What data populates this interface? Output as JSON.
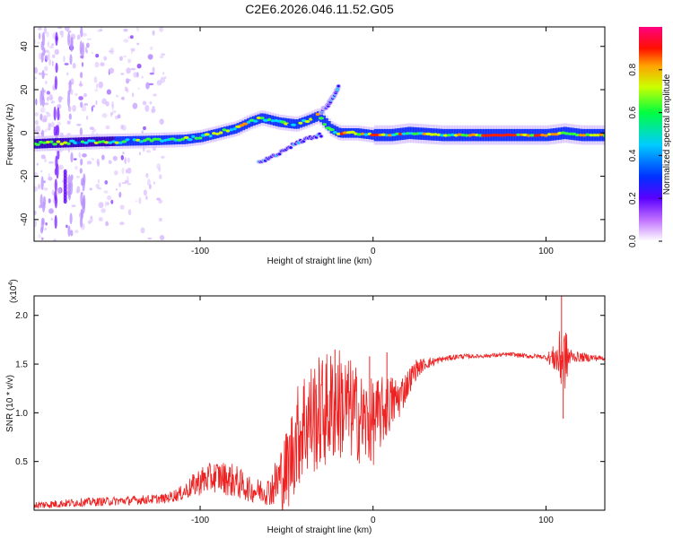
{
  "title": "C2E6.2026.046.11.52.G05",
  "chart_data": [
    {
      "type": "heatmap",
      "name": "spectrogram",
      "xlabel": "Height of straight line (km)",
      "ylabel": "Frequency (Hz)",
      "xlim": [
        -196,
        134
      ],
      "ylim": [
        -50,
        49
      ],
      "xticks": [
        -100,
        0,
        100
      ],
      "yticks": [
        -40,
        -20,
        0,
        20,
        40
      ],
      "ridge": {
        "x": [
          -196,
          -160,
          -130,
          -110,
          -100,
          -90,
          -80,
          -72,
          -65,
          -55,
          -45,
          -38,
          -32,
          -25,
          -20,
          -10,
          0,
          10,
          20,
          40,
          60,
          80,
          90,
          100,
          110,
          120,
          134
        ],
        "y": [
          -5,
          -4,
          -3.5,
          -3,
          -2,
          0,
          2,
          5,
          7,
          5,
          4,
          6,
          8,
          2,
          0,
          0,
          -1,
          -1,
          0,
          -1,
          -1,
          -1,
          -1,
          -1,
          0,
          -1,
          -1
        ]
      },
      "secondary_branch": {
        "x": [
          -66,
          -58,
          -50,
          -42,
          -36,
          -30
        ],
        "y": [
          -14,
          -11,
          -7,
          -4,
          -2,
          -1
        ]
      },
      "upper_branch": {
        "x": [
          -30,
          -26,
          -22,
          -20
        ],
        "y": [
          10,
          13,
          18,
          21
        ]
      },
      "colorbar": {
        "label": "Normalized spectral amplitude",
        "range": [
          0,
          1
        ],
        "ticks": [
          0.0,
          0.2,
          0.4,
          0.6,
          0.8
        ]
      }
    },
    {
      "type": "line",
      "name": "snr",
      "xlabel": "Height of straight line (km)",
      "ylabel": "SNR (10 * v/v)",
      "scale_label": "(x10",
      "scale_exp": "4",
      "xlim": [
        -196,
        134
      ],
      "ylim": [
        0,
        22000
      ],
      "xticks": [
        -100,
        0,
        100
      ],
      "yticks": [
        5000,
        10000,
        15000,
        20000
      ],
      "ytick_labels": [
        "0.5",
        "1.0",
        "1.5",
        "2.0"
      ],
      "color": "#ee2222",
      "envelope": {
        "x": [
          -196,
          -170,
          -140,
          -120,
          -110,
          -100,
          -90,
          -80,
          -70,
          -60,
          -50,
          -45,
          -40,
          -35,
          -30,
          -25,
          -20,
          -15,
          -10,
          -5,
          0,
          5,
          10,
          15,
          20,
          25,
          30,
          40,
          50,
          60,
          70,
          80,
          90,
          95,
          100,
          105,
          108,
          110,
          115,
          120,
          134
        ],
        "y": [
          500,
          800,
          1000,
          1200,
          1800,
          3000,
          3500,
          3000,
          2000,
          2000,
          4000,
          7000,
          9000,
          9500,
          10000,
          10500,
          11000,
          10500,
          10000,
          9000,
          9000,
          10000,
          11000,
          11500,
          13000,
          14500,
          15000,
          15500,
          15800,
          15800,
          15900,
          16000,
          15800,
          15800,
          15700,
          15600,
          15500,
          15500,
          15800,
          15700,
          15600
        ]
      },
      "noise_amplitude": {
        "x": [
          -196,
          -120,
          -110,
          -100,
          -80,
          -70,
          -60,
          -50,
          -40,
          -30,
          -20,
          -10,
          0,
          10,
          20,
          30,
          40,
          60,
          100,
          105,
          110,
          115,
          134
        ],
        "y": [
          400,
          500,
          800,
          1500,
          1800,
          1200,
          1500,
          4500,
          6000,
          6000,
          6000,
          5000,
          4500,
          3000,
          1500,
          600,
          300,
          200,
          250,
          1500,
          4000,
          600,
          250
        ]
      },
      "spikes": [
        {
          "x": 109,
          "y": 22000
        },
        {
          "x": 110,
          "y": 9400
        },
        {
          "x": -22,
          "y": 16500
        },
        {
          "x": -2,
          "y": 15800
        },
        {
          "x": 8,
          "y": 16200
        }
      ]
    }
  ]
}
